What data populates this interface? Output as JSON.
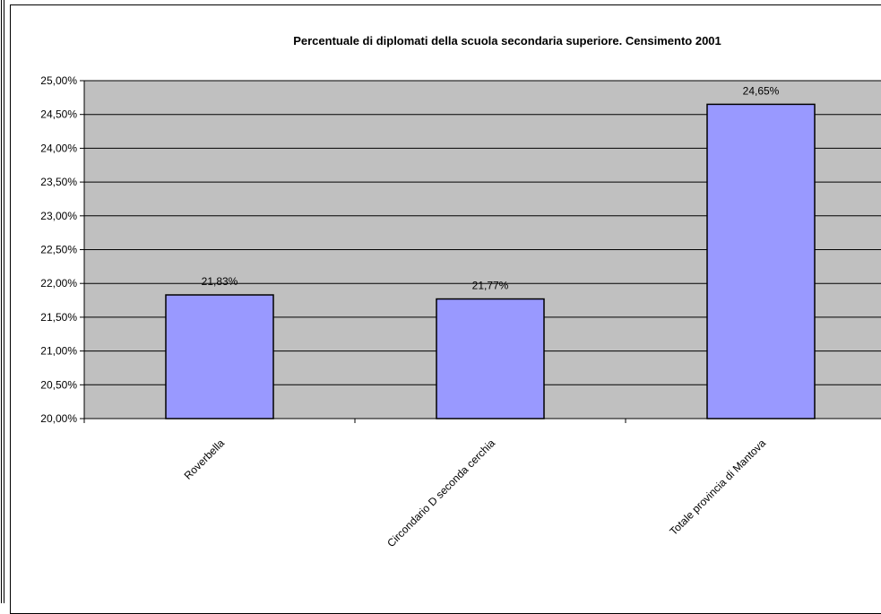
{
  "chart_data": {
    "type": "bar",
    "title": "Percentuale di diplomati della scuola secondaria superiore. Censimento 2001",
    "categories": [
      "Roverbella",
      "Circondario D seconda cerchia",
      "Totale provincia di Mantova"
    ],
    "values": [
      21.83,
      21.77,
      24.65
    ],
    "data_labels": [
      "21,83%",
      "21,77%",
      "24,65%"
    ],
    "ylim": [
      20,
      25
    ],
    "yticks": [
      20,
      20.5,
      21,
      21.5,
      22,
      22.5,
      23,
      23.5,
      24,
      24.5,
      25
    ],
    "ytick_labels": [
      "20,00%",
      "20,50%",
      "21,00%",
      "21,50%",
      "22,00%",
      "22,50%",
      "23,00%",
      "23,50%",
      "24,00%",
      "24,50%",
      "25,00%"
    ],
    "grid": true,
    "legend": "none",
    "colors": {
      "bar_fill": "#9999ff",
      "bar_stroke": "#000000",
      "plot_background": "#c0c0c0",
      "gridline": "#000000"
    }
  }
}
